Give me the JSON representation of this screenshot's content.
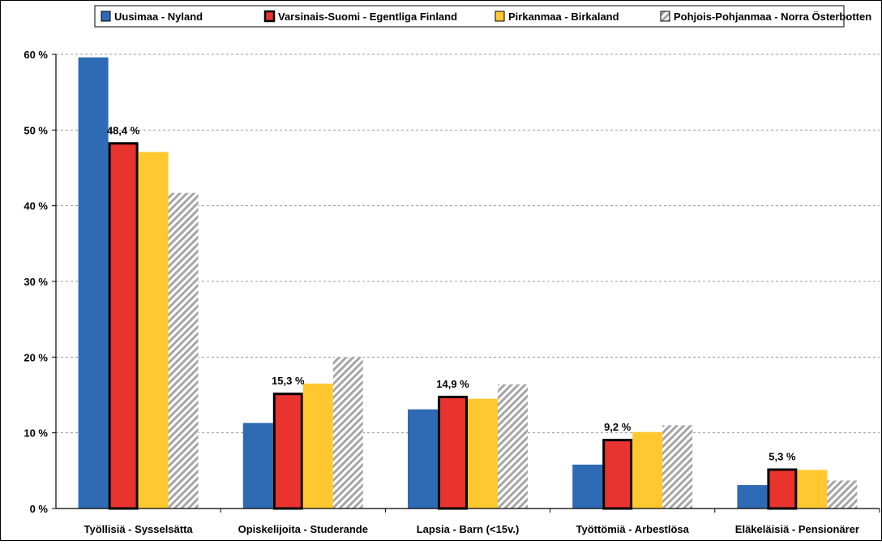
{
  "chart_data": {
    "type": "bar",
    "title": "",
    "xlabel": "",
    "ylabel": "",
    "ylim": [
      0,
      60
    ],
    "y_ticks": [
      0,
      10,
      20,
      30,
      40,
      50,
      60
    ],
    "y_tick_labels": [
      "0 %",
      "10 %",
      "20 %",
      "30 %",
      "40 %",
      "50 %",
      "60 %"
    ],
    "grid": "horizontal dashed",
    "legend_position": "top",
    "categories": [
      "Työllisiä - Sysselsätta",
      "Opiskelijoita - Studerande",
      "Lapsia - Barn (<15v.)",
      "Työttömiä - Arbestlösa",
      "Eläkeläisiä - Pensionärer"
    ],
    "series": [
      {
        "name": "Uusimaa - Nyland",
        "color": "#2f6ab4",
        "pattern": "solid",
        "values": [
          59.6,
          11.3,
          13.1,
          5.8,
          3.1
        ],
        "labels": [
          "",
          "",
          "",
          "",
          ""
        ]
      },
      {
        "name": "Varsinais-Suomi - Egentliga Finland",
        "color": "#e8332f",
        "pattern": "solid-thick-border",
        "values": [
          48.4,
          15.3,
          14.9,
          9.2,
          5.3
        ],
        "labels": [
          "48,4 %",
          "15,3 %",
          "14,9 %",
          "9,2 %",
          "5,3 %"
        ]
      },
      {
        "name": "Pirkanmaa - Birkaland",
        "color": "#ffc830",
        "pattern": "solid",
        "values": [
          47.1,
          16.5,
          14.5,
          10.1,
          5.1
        ],
        "labels": [
          "",
          "",
          "",
          "",
          ""
        ]
      },
      {
        "name": "Pohjois-Pohjanmaa - Norra Österbotten",
        "color": "#a0a0a0",
        "pattern": "diagonal-hatch",
        "values": [
          41.7,
          20.0,
          16.4,
          11.0,
          3.7
        ],
        "labels": [
          "",
          "",
          "",
          "",
          ""
        ]
      }
    ]
  }
}
